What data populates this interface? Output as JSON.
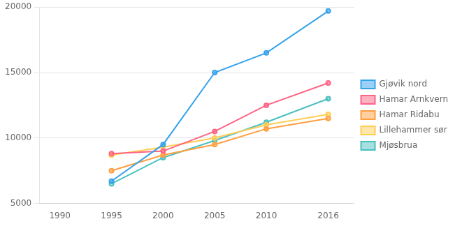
{
  "chart_data": {
    "type": "line",
    "x": [
      1990,
      1995,
      2000,
      2005,
      2010,
      2016
    ],
    "series": [
      {
        "name": "Gjøvik nord",
        "values": [
          null,
          6700,
          9500,
          15000,
          16500,
          19700
        ]
      },
      {
        "name": "Hamar Arnkvern",
        "values": [
          null,
          8800,
          9000,
          10500,
          12500,
          14200
        ]
      },
      {
        "name": "Hamar Ridabu",
        "values": [
          null,
          7500,
          8700,
          9500,
          10700,
          11500
        ]
      },
      {
        "name": "Lillehammer sør",
        "values": [
          null,
          8700,
          9300,
          10000,
          11000,
          11800
        ]
      },
      {
        "name": "Mjøsbrua",
        "values": [
          null,
          6500,
          8500,
          9800,
          11200,
          13000
        ]
      }
    ],
    "xlim": [
      1988,
      2018.5
    ],
    "xticks": [
      1990,
      1995,
      2000,
      2005,
      2010,
      2016
    ],
    "ylim": [
      5000,
      20000
    ],
    "yticks": [
      5000,
      10000,
      15000,
      20000
    ],
    "grid": "y",
    "legend": "right"
  }
}
